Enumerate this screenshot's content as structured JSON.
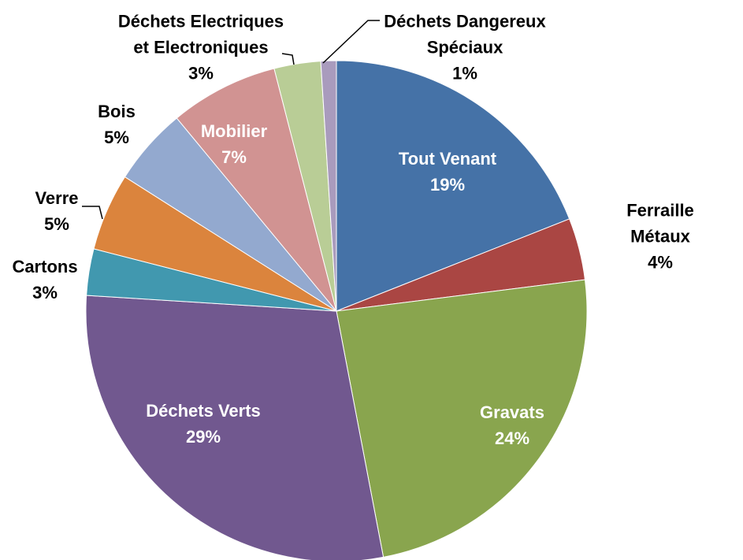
{
  "chart_data": {
    "type": "pie",
    "categories": [
      "Tout Venant",
      "Ferraille Métaux",
      "Gravats",
      "Déchets Verts",
      "Cartons",
      "Verre",
      "Bois",
      "Mobilier",
      "Déchets Electriques\net Electroniques",
      "Déchets Dangereux\nSpéciaux"
    ],
    "values": [
      19,
      4,
      24,
      29,
      3,
      5,
      5,
      7,
      3,
      1
    ],
    "value_labels": [
      "19%",
      "4%",
      "24%",
      "29%",
      "3%",
      "5%",
      "5%",
      "7%",
      "3%",
      "1%"
    ],
    "colors": [
      "#4572a7",
      "#aa4643",
      "#89a54e",
      "#71588f",
      "#4198af",
      "#db843d",
      "#93a9cf",
      "#d19392",
      "#b9cd96",
      "#a99bbd"
    ]
  }
}
